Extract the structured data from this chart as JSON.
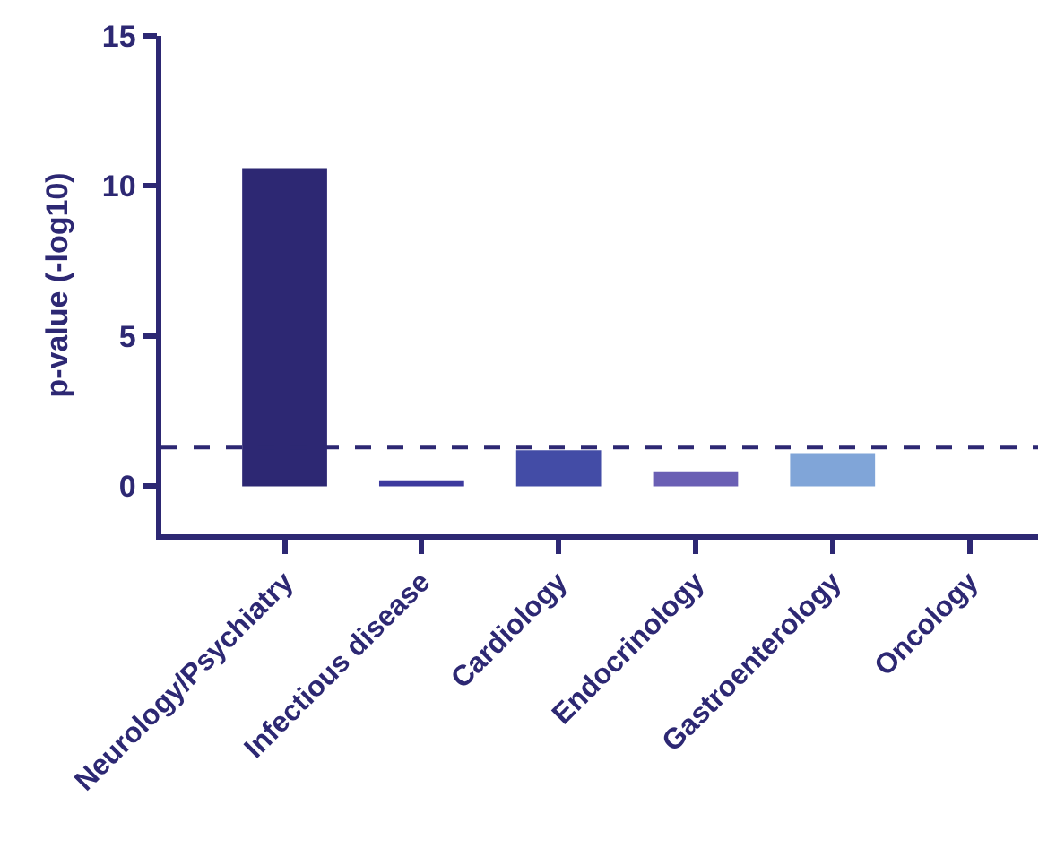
{
  "chart_data": {
    "type": "bar",
    "ylabel": "p-value (-log10)",
    "categories": [
      "Neurology/Psychiatry",
      "Infectious disease",
      "Cardiology",
      "Endocrinology",
      "Gastroenterology",
      "Oncology"
    ],
    "values": [
      10.6,
      0.2,
      1.2,
      0.5,
      1.1,
      0
    ],
    "colors": [
      "#2d2873",
      "#3d3a9e",
      "#434ca6",
      "#6a5fb4",
      "#80a5d8",
      "#2d2873"
    ],
    "ylim": [
      -1.6,
      15
    ],
    "yticks": [
      0,
      5,
      10,
      15
    ],
    "ref_lines": [
      {
        "axis": "y",
        "value": 1.3,
        "line_style": "dashed",
        "color": "#2d2873"
      }
    ]
  }
}
